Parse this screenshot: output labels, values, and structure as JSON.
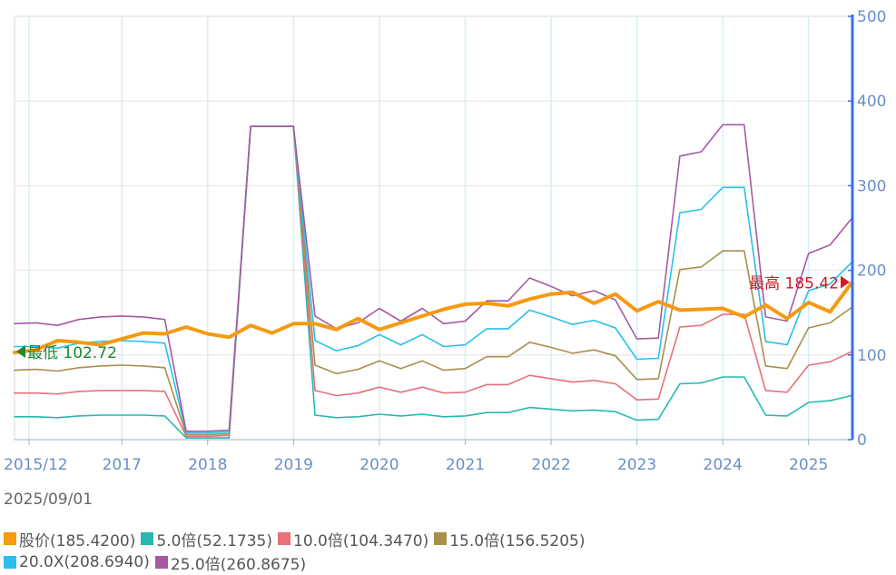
{
  "chart_data": {
    "type": "line",
    "date": "2025/09/01",
    "x_ticks": [
      "2015/12",
      "2017",
      "2018",
      "2019",
      "2020",
      "2021",
      "2022",
      "2023",
      "2024",
      "2025"
    ],
    "y_ticks": [
      "0",
      "100",
      "200",
      "300",
      "400",
      "500"
    ],
    "ylim": [
      0,
      500
    ],
    "min_annotation": "最低 102.72",
    "max_annotation": "最高 185.42",
    "x": [
      2015.75,
      2016.0,
      2016.25,
      2016.5,
      2016.75,
      2017.0,
      2017.25,
      2017.5,
      2017.75,
      2018.0,
      2018.25,
      2018.5,
      2018.75,
      2019.0,
      2019.25,
      2019.5,
      2019.75,
      2020.0,
      2020.25,
      2020.5,
      2020.75,
      2021.0,
      2021.25,
      2021.5,
      2021.75,
      2022.0,
      2022.25,
      2022.5,
      2022.75,
      2023.0,
      2023.25,
      2023.5,
      2023.75,
      2024.0,
      2024.25,
      2024.5,
      2024.75,
      2025.0,
      2025.25,
      2025.5
    ],
    "series": [
      {
        "name": "5.0倍",
        "legend_value": "(52.1735)",
        "color": "#26b8b0",
        "values": [
          27,
          27,
          26,
          28,
          29,
          29,
          29,
          28,
          2,
          2,
          2,
          370,
          370,
          370,
          29,
          26,
          27,
          30,
          28,
          30,
          27,
          28,
          32,
          32,
          38,
          36,
          34,
          35,
          33,
          23,
          24,
          66,
          67,
          74,
          74,
          29,
          28,
          44,
          46,
          52
        ]
      },
      {
        "name": "10.0倍",
        "legend_value": "(104.3470)",
        "color": "#e8707a",
        "values": [
          55,
          55,
          54,
          57,
          58,
          58,
          58,
          57,
          4,
          4,
          5,
          370,
          370,
          370,
          58,
          52,
          55,
          62,
          56,
          62,
          55,
          56,
          65,
          65,
          76,
          72,
          68,
          70,
          66,
          47,
          48,
          133,
          135,
          148,
          148,
          58,
          56,
          88,
          92,
          104
        ]
      },
      {
        "name": "15.0倍",
        "legend_value": "(156.5205)",
        "color": "#a88f4c",
        "values": [
          82,
          83,
          81,
          85,
          87,
          88,
          87,
          85,
          6,
          6,
          7,
          370,
          370,
          370,
          88,
          78,
          83,
          93,
          84,
          93,
          82,
          84,
          98,
          98,
          115,
          109,
          102,
          106,
          99,
          71,
          72,
          201,
          204,
          223,
          223,
          87,
          84,
          132,
          138,
          156
        ]
      },
      {
        "name": "20.0X",
        "legend_value": "(208.6940)",
        "color": "#29c0ec",
        "values": [
          110,
          110,
          108,
          114,
          116,
          117,
          116,
          114,
          8,
          8,
          9,
          370,
          370,
          370,
          117,
          105,
          111,
          124,
          112,
          124,
          110,
          112,
          131,
          131,
          153,
          145,
          136,
          141,
          132,
          95,
          96,
          268,
          272,
          298,
          298,
          116,
          112,
          176,
          184,
          209
        ]
      },
      {
        "name": "25.0倍",
        "legend_value": "(260.8675)",
        "color": "#a55aa3",
        "values": [
          137,
          138,
          135,
          142,
          145,
          146,
          145,
          142,
          10,
          10,
          11,
          370,
          370,
          370,
          146,
          131,
          138,
          155,
          140,
          155,
          137,
          140,
          164,
          164,
          191,
          181,
          170,
          176,
          165,
          119,
          120,
          335,
          340,
          372,
          372,
          145,
          140,
          220,
          230,
          261
        ]
      },
      {
        "name": "股价",
        "legend_value": "(185.4200)",
        "color": "#f59a11",
        "values": [
          103,
          106,
          117,
          115,
          112,
          119,
          126,
          125,
          133,
          125,
          121,
          135,
          126,
          137,
          137,
          130,
          143,
          130,
          138,
          146,
          154,
          160,
          161,
          158,
          166,
          172,
          174,
          161,
          172,
          152,
          163,
          153,
          154,
          155,
          145,
          159,
          143,
          162,
          151,
          185
        ]
      }
    ]
  }
}
